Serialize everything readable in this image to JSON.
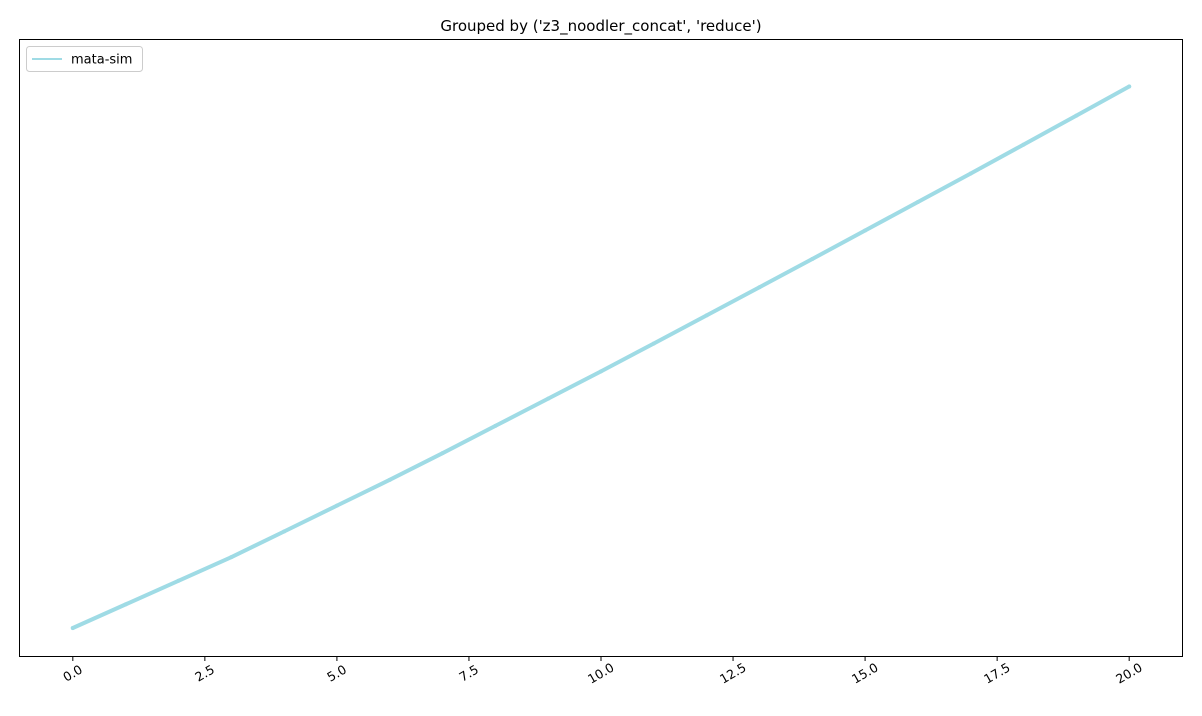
{
  "chart_data": {
    "type": "line",
    "title": "Grouped by ('z3_noodler_concat', 'reduce')",
    "xlabel": "",
    "ylabel": "",
    "xlim": [
      -1.0,
      21.0
    ],
    "ylim": [
      -0.05,
      1.05
    ],
    "x_ticks": [
      0.0,
      2.5,
      5.0,
      7.5,
      10.0,
      12.5,
      15.0,
      17.5,
      20.0
    ],
    "x_tick_labels": [
      "0.0",
      "2.5",
      "5.0",
      "7.5",
      "10.0",
      "12.5",
      "15.0",
      "17.5",
      "20.0"
    ],
    "y_ticks_shown": false,
    "grid": false,
    "legend_position": "top-left",
    "series": [
      {
        "name": "mata-sim",
        "color": "#9fdbe5",
        "x": [
          0,
          1,
          2,
          3,
          4,
          5,
          6,
          7,
          8,
          9,
          10,
          11,
          12,
          13,
          14,
          15,
          16,
          17,
          18,
          19,
          20
        ],
        "y": [
          0.0,
          0.0422,
          0.0843,
          0.1265,
          0.1723,
          0.2185,
          0.2646,
          0.3122,
          0.3609,
          0.4096,
          0.4583,
          0.5081,
          0.5583,
          0.6085,
          0.6589,
          0.7098,
          0.7607,
          0.8116,
          0.8632,
          0.915,
          0.967
        ]
      }
    ]
  }
}
